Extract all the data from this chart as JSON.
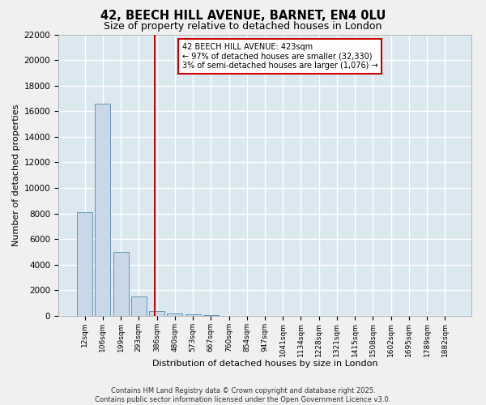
{
  "title_line1": "42, BEECH HILL AVENUE, BARNET, EN4 0LU",
  "title_line2": "Size of property relative to detached houses in London",
  "xlabel": "Distribution of detached houses by size in London",
  "ylabel": "Number of detached properties",
  "categories": [
    "12sqm",
    "106sqm",
    "199sqm",
    "293sqm",
    "386sqm",
    "480sqm",
    "573sqm",
    "667sqm",
    "760sqm",
    "854sqm",
    "947sqm",
    "1041sqm",
    "1134sqm",
    "1228sqm",
    "1321sqm",
    "1415sqm",
    "1508sqm",
    "1602sqm",
    "1695sqm",
    "1789sqm",
    "1882sqm"
  ],
  "values": [
    8100,
    16600,
    5000,
    1500,
    350,
    200,
    100,
    50,
    30,
    15,
    5,
    2,
    1,
    1,
    0,
    0,
    0,
    0,
    0,
    0,
    0
  ],
  "bar_color": "#c8d8e8",
  "bar_edge_color": "#5588aa",
  "vline_x": 3.87,
  "vline_color": "#cc0000",
  "annotation_text": "42 BEECH HILL AVENUE: 423sqm\n← 97% of detached houses are smaller (32,330)\n3% of semi-detached houses are larger (1,076) →",
  "annotation_box_color": "#ffffff",
  "annotation_box_edge": "#cc0000",
  "ylim": [
    0,
    22000
  ],
  "yticks": [
    0,
    2000,
    4000,
    6000,
    8000,
    10000,
    12000,
    14000,
    16000,
    18000,
    20000,
    22000
  ],
  "background_color": "#dce8f0",
  "grid_color": "#ffffff",
  "footer_line1": "Contains HM Land Registry data © Crown copyright and database right 2025.",
  "footer_line2": "Contains public sector information licensed under the Open Government Licence v3.0.",
  "title_fontsize": 10.5,
  "subtitle_fontsize": 9,
  "xlabel_fontsize": 8,
  "ylabel_fontsize": 8,
  "fig_bg": "#f0f0f0"
}
